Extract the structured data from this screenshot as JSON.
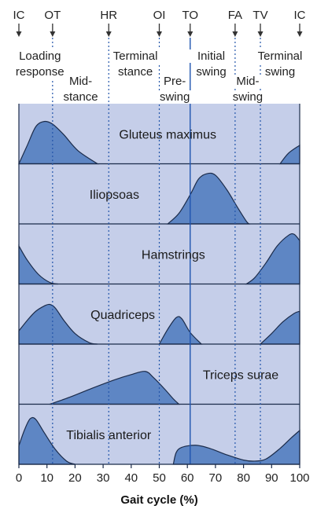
{
  "events": [
    {
      "label": "IC",
      "at": 0
    },
    {
      "label": "OT",
      "at": 12
    },
    {
      "label": "HR",
      "at": 32
    },
    {
      "label": "OI",
      "at": 50
    },
    {
      "label": "TO",
      "at": 61
    },
    {
      "label": "FA",
      "at": 77
    },
    {
      "label": "TV",
      "at": 86
    },
    {
      "label": "IC",
      "at": 100
    }
  ],
  "phases": [
    {
      "lines": [
        "Loading",
        "response"
      ],
      "x": 7.5,
      "rows": [
        1,
        2
      ]
    },
    {
      "lines": [
        "Mid-",
        "stance"
      ],
      "x": 22,
      "rows": [
        2.6,
        3.6
      ]
    },
    {
      "lines": [
        "Terminal",
        "stance"
      ],
      "x": 41.5,
      "rows": [
        1,
        2
      ]
    },
    {
      "lines": [
        "Pre-",
        "swing"
      ],
      "x": 55.5,
      "rows": [
        2.6,
        3.6
      ]
    },
    {
      "lines": [
        "Initial",
        "swing"
      ],
      "x": 68.5,
      "rows": [
        1,
        2
      ]
    },
    {
      "lines": [
        "Mid-",
        "swing"
      ],
      "x": 81.5,
      "rows": [
        2.6,
        3.6
      ]
    },
    {
      "lines": [
        "Terminal",
        "swing"
      ],
      "x": 93,
      "rows": [
        1,
        2
      ]
    }
  ],
  "muscles": [
    {
      "name": "Gluteus maximus",
      "label_x": 53,
      "peak": 10,
      "curves": [
        [
          [
            0,
            0
          ],
          [
            3,
            0.35
          ],
          [
            6,
            0.7
          ],
          [
            9,
            0.8
          ],
          [
            12,
            0.75
          ],
          [
            16,
            0.55
          ],
          [
            21,
            0.25
          ],
          [
            28,
            0
          ]
        ],
        [
          [
            93,
            0
          ],
          [
            96,
            0.2
          ],
          [
            100,
            0.35
          ]
        ]
      ]
    },
    {
      "name": "Iliopsoas",
      "label_x": 34,
      "peak": 67,
      "curves": [
        [
          [
            53,
            0
          ],
          [
            57,
            0.2
          ],
          [
            61,
            0.55
          ],
          [
            64,
            0.85
          ],
          [
            67,
            0.95
          ],
          [
            70,
            0.92
          ],
          [
            74,
            0.65
          ],
          [
            78,
            0.3
          ],
          [
            81,
            0.05
          ],
          [
            82,
            0
          ]
        ]
      ]
    },
    {
      "name": "Hamstrings",
      "label_x": 55,
      "peak": 97,
      "curves": [
        [
          [
            0,
            0.72
          ],
          [
            3,
            0.45
          ],
          [
            7,
            0.18
          ],
          [
            11,
            0.03
          ],
          [
            14,
            0
          ]
        ],
        [
          [
            81,
            0
          ],
          [
            84,
            0.12
          ],
          [
            88,
            0.4
          ],
          [
            92,
            0.72
          ],
          [
            96,
            0.92
          ],
          [
            98,
            0.94
          ],
          [
            100,
            0.82
          ]
        ]
      ]
    },
    {
      "name": "Quadriceps",
      "label_x": 37,
      "peak": 11,
      "curves": [
        [
          [
            0,
            0.25
          ],
          [
            3,
            0.45
          ],
          [
            6,
            0.62
          ],
          [
            9,
            0.72
          ],
          [
            11,
            0.75
          ],
          [
            13,
            0.68
          ],
          [
            16,
            0.45
          ],
          [
            20,
            0.2
          ],
          [
            25,
            0.03
          ],
          [
            28,
            0
          ]
        ],
        [
          [
            50,
            0
          ],
          [
            53,
            0.28
          ],
          [
            56,
            0.5
          ],
          [
            58,
            0.48
          ],
          [
            61,
            0.22
          ],
          [
            65,
            0
          ]
        ],
        [
          [
            86,
            0
          ],
          [
            90,
            0.2
          ],
          [
            94,
            0.42
          ],
          [
            98,
            0.58
          ],
          [
            100,
            0.62
          ]
        ]
      ]
    },
    {
      "name": "Triceps surae",
      "label_x": 79,
      "peak": 45,
      "curves": [
        [
          [
            11,
            0
          ],
          [
            18,
            0.13
          ],
          [
            26,
            0.3
          ],
          [
            34,
            0.46
          ],
          [
            40,
            0.56
          ],
          [
            45,
            0.62
          ],
          [
            48,
            0.5
          ],
          [
            52,
            0.28
          ],
          [
            55,
            0.1
          ],
          [
            57,
            0
          ]
        ]
      ]
    },
    {
      "name": "Tibialis anterior",
      "label_x": 32,
      "peak": 5,
      "curves": [
        [
          [
            0,
            0.35
          ],
          [
            2,
            0.65
          ],
          [
            4,
            0.86
          ],
          [
            6,
            0.85
          ],
          [
            9,
            0.6
          ],
          [
            13,
            0.28
          ],
          [
            17,
            0.06
          ],
          [
            20,
            0
          ]
        ],
        [
          [
            55,
            0
          ],
          [
            56,
            0.22
          ],
          [
            58,
            0.32
          ],
          [
            63,
            0.36
          ],
          [
            68,
            0.3
          ],
          [
            74,
            0.18
          ],
          [
            80,
            0.08
          ],
          [
            84,
            0.06
          ],
          [
            88,
            0.1
          ],
          [
            93,
            0.3
          ],
          [
            97,
            0.5
          ],
          [
            100,
            0.64
          ]
        ]
      ]
    }
  ],
  "x_axis": {
    "label": "Gait cycle (%)",
    "ticks": [
      0,
      10,
      20,
      30,
      40,
      50,
      60,
      70,
      80,
      90,
      100
    ],
    "range": [
      0,
      100
    ]
  },
  "colors": {
    "band": "#c5cee9",
    "fill": "#5e86c4",
    "stroke": "#1b2b4a",
    "dotted": "#2255aa",
    "solid": "#1f55b0",
    "arrow": "#333333"
  }
}
